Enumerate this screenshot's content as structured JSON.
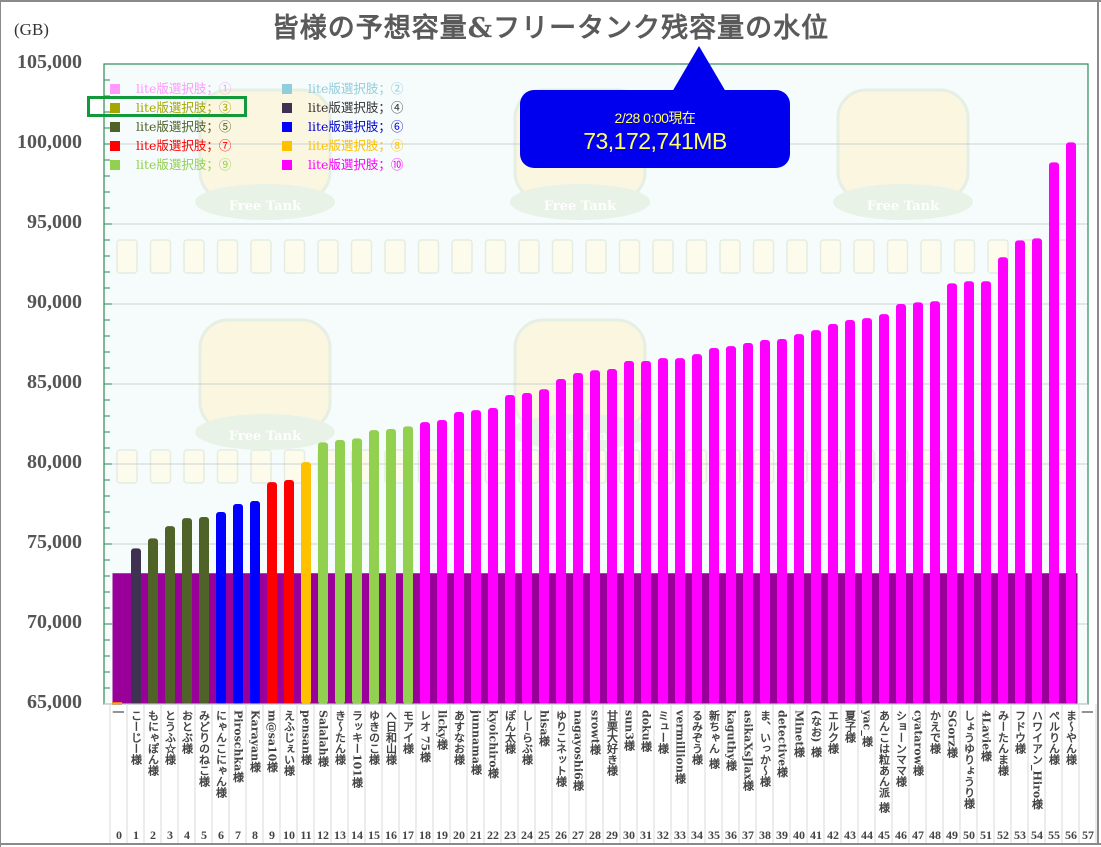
{
  "chart_data": {
    "type": "bar",
    "title": "皆様の予想容量&フリータンク残容量の水位",
    "ylabel": "(GB)",
    "xlabel": "",
    "ylim": [
      65000,
      105000
    ],
    "yticks": [
      65000,
      70000,
      75000,
      80000,
      85000,
      90000,
      95000,
      100000,
      105000
    ],
    "ytick_labels": [
      "65,000",
      "70,000",
      "75,000",
      "80,000",
      "85,000",
      "90,000",
      "95,000",
      "100,000",
      "105,000"
    ],
    "grid": true,
    "legend_position": "top-left",
    "water_level": {
      "label": "フリータンク残容量",
      "value_gb": 73172.741,
      "color": "#990099"
    },
    "annotation": {
      "date": "2/28 0:00現在",
      "value": "73,172,741MB"
    },
    "legend": [
      {
        "label": "lite版選択肢；①",
        "color": "#ff99ff"
      },
      {
        "label": "lite版選択肢；②",
        "color": "#92cddc"
      },
      {
        "label": "lite版選択肢；③",
        "color": "#a6a600"
      },
      {
        "label": "lite版選択肢；④",
        "color": "#3f3151"
      },
      {
        "label": "lite版選択肢；⑤",
        "color": "#4f6228"
      },
      {
        "label": "lite版選択肢；⑥",
        "color": "#0000ff"
      },
      {
        "label": "lite版選択肢；⑦",
        "color": "#ff0000"
      },
      {
        "label": "lite版選択肢；⑧",
        "color": "#ffc000"
      },
      {
        "label": "lite版選択肢；⑨",
        "color": "#92d050"
      },
      {
        "label": "lite版選択肢；⑩",
        "color": "#ff00ff"
      }
    ],
    "legend_text_colors": [
      "#ff99ff",
      "#92cddc",
      "#a6a600",
      "#333333",
      "#4f6228",
      "#0000cc",
      "#ff0000",
      "#ffc000",
      "#92d050",
      "#ff00ff"
    ],
    "highlighted_legend_index": 2,
    "categories": [
      "0",
      "1",
      "2",
      "3",
      "4",
      "5",
      "6",
      "7",
      "8",
      "9",
      "10",
      "11",
      "12",
      "13",
      "14",
      "15",
      "16",
      "17",
      "18",
      "19",
      "20",
      "21",
      "22",
      "23",
      "24",
      "25",
      "26",
      "27",
      "28",
      "29",
      "30",
      "31",
      "32",
      "33",
      "34",
      "35",
      "36",
      "37",
      "38",
      "39",
      "40",
      "41",
      "42",
      "43",
      "44",
      "45",
      "46",
      "47",
      "48",
      "49",
      "50",
      "51",
      "52",
      "53",
      "54",
      "55",
      "56",
      "57"
    ],
    "names": [
      "|",
      "こーじー様",
      "もにゃぽん様",
      "とうふ☆様",
      "おとぶ様",
      "みどりのねこ様",
      "にゃんこにゃん様",
      "Piroschka様",
      "Karayan様",
      "m@sa10様",
      "えふじぇい様",
      "pensan様",
      "Salalah様",
      "き～たん様",
      "ラッキー101様",
      "ゆきのこ様",
      "へ日和山様",
      "モアイ様",
      "レオ 75様",
      "licky様",
      "あすなお様",
      "junnama様",
      "kyoichiro様",
      "ぽん太様",
      "しーらぶ様",
      "hisa様",
      "ゆりこネット様",
      "nagayoshi6様",
      "srowt様",
      "甘栗大好き様",
      "sun3様",
      "doku様",
      "ミュー様",
      "vermillion様",
      "るみぞう様",
      "新ちゃん 様",
      "kaguthy様",
      "asikaXsJlax様",
      "ま、いっか～様",
      "detective様",
      "Minet様",
      "(なお) 様",
      "エルク様",
      "夏子様",
      "yac_様",
      "あんこは粒あん派 様",
      "ショーンママ様",
      "cyatarow様",
      "かえで様",
      "SGorz様",
      "しょうゆりょうり様",
      "4Lavie様",
      "みーたんま様",
      "フドウ様",
      "ハワイアン_Hiro様",
      "ぺルりん様",
      "ま～やん様",
      "|"
    ],
    "values": [
      65100,
      74730,
      75350,
      76120,
      76620,
      76690,
      77000,
      77500,
      77690,
      78870,
      79000,
      80120,
      81350,
      81500,
      81600,
      82120,
      82190,
      82350,
      82620,
      82750,
      83250,
      83370,
      83500,
      84310,
      84440,
      84670,
      85310,
      85690,
      85860,
      85940,
      86440,
      86440,
      86620,
      86620,
      86870,
      87250,
      87370,
      87560,
      87750,
      87810,
      88120,
      88370,
      88750,
      89000,
      89120,
      89370,
      90000,
      90100,
      90170,
      91290,
      91420,
      91420,
      92920,
      93980,
      94100,
      98850,
      100100,
      null
    ],
    "bar_group": [
      8,
      4,
      5,
      5,
      5,
      5,
      6,
      6,
      6,
      7,
      7,
      8,
      9,
      9,
      9,
      9,
      9,
      9,
      10,
      10,
      10,
      10,
      10,
      10,
      10,
      10,
      10,
      10,
      10,
      10,
      10,
      10,
      10,
      10,
      10,
      10,
      10,
      10,
      10,
      10,
      10,
      10,
      10,
      10,
      10,
      10,
      10,
      10,
      10,
      10,
      10,
      10,
      10,
      10,
      10,
      10,
      10,
      0
    ],
    "bar0_color": "#f07820"
  },
  "background": {
    "watermark_text": "Free Tank"
  }
}
